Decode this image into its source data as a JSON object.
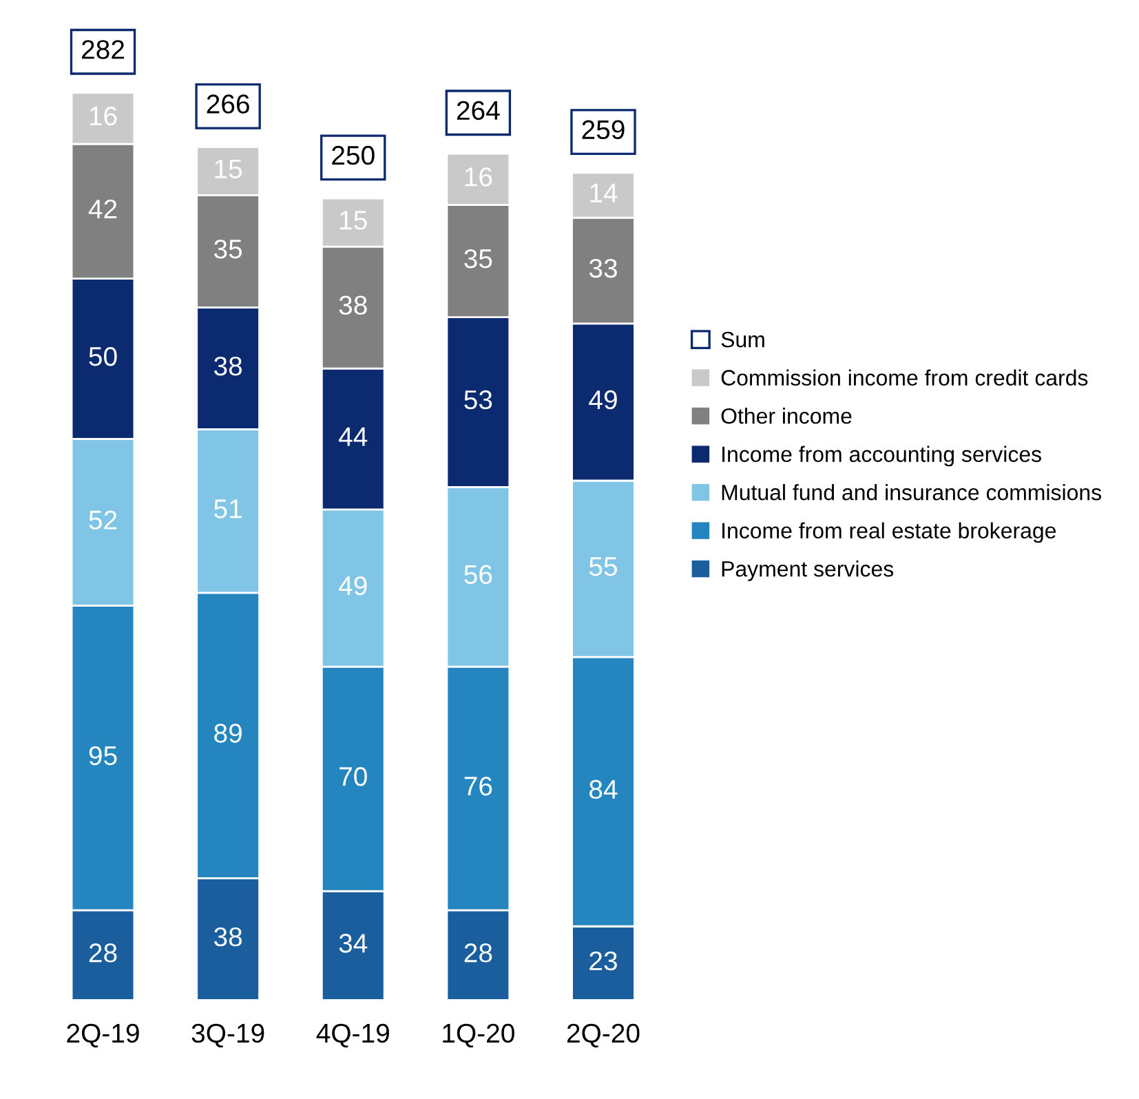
{
  "chart_data": {
    "type": "bar",
    "stacked": true,
    "data_labels": true,
    "legend": "right",
    "categories": [
      "2Q-19",
      "3Q-19",
      "4Q-19",
      "1Q-20",
      "2Q-20"
    ],
    "series": [
      {
        "name": "Payment services",
        "color": "#1b5e9e",
        "values": [
          28,
          38,
          34,
          28,
          23
        ]
      },
      {
        "name": "Income from real estate brokerage",
        "color": "#2485bf",
        "values": [
          95,
          89,
          70,
          76,
          84
        ]
      },
      {
        "name": "Mutual fund and insurance commisions",
        "color": "#80c5e5",
        "values": [
          52,
          51,
          49,
          56,
          55
        ]
      },
      {
        "name": "Income from accounting services",
        "color": "#0b2a6f",
        "values": [
          50,
          38,
          44,
          53,
          49
        ]
      },
      {
        "name": "Other income",
        "color": "#808080",
        "values": [
          42,
          35,
          38,
          35,
          33
        ]
      },
      {
        "name": "Commission income from credit cards",
        "color": "#c9c9c9",
        "values": [
          16,
          15,
          15,
          16,
          14
        ]
      }
    ],
    "totals": [
      "282",
      "266",
      "250",
      "264",
      "259"
    ],
    "annotations": [
      "Sum"
    ]
  }
}
